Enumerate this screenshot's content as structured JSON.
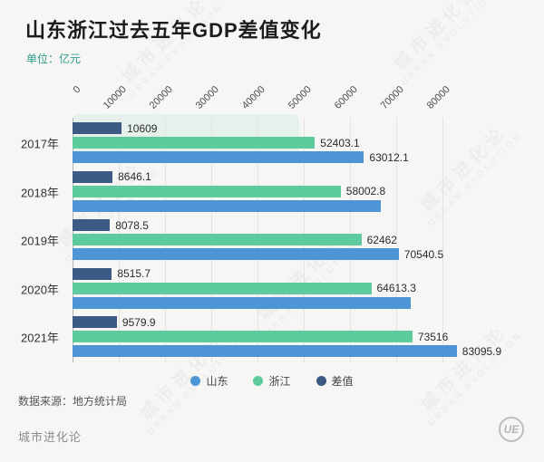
{
  "title": "山东浙江过去五年GDP差值变化",
  "subtitle": "单位：亿元",
  "colors": {
    "shandong": "#4d95d5",
    "zhejiang": "#5ecb9e",
    "diff": "#3d5a85"
  },
  "chart_data": {
    "type": "bar",
    "orientation": "horizontal",
    "unit": "亿元",
    "categories": [
      "2017年",
      "2018年",
      "2019年",
      "2020年",
      "2021年"
    ],
    "series": [
      {
        "name": "山东",
        "color_key": "shandong",
        "values": [
          63012.1,
          66600,
          70540.5,
          73100,
          83095.9
        ],
        "value_labels": [
          "63012.1",
          "",
          "70540.5",
          "",
          "83095.9"
        ]
      },
      {
        "name": "浙江",
        "color_key": "zhejiang",
        "values": [
          52403.1,
          58002.8,
          62462,
          64613.3,
          73516
        ],
        "value_labels": [
          "52403.1",
          "58002.8",
          "62462",
          "64613.3",
          "73516"
        ]
      },
      {
        "name": "差值",
        "color_key": "diff",
        "values": [
          10609,
          8646.1,
          8078.5,
          8515.7,
          9579.9
        ],
        "value_labels": [
          "10609",
          "8646.1",
          "8078.5",
          "8515.7",
          "9579.9"
        ]
      }
    ],
    "display_order": [
      "差值",
      "浙江",
      "山东"
    ],
    "xticks": [
      "0",
      "10000",
      "20000",
      "30000",
      "40000",
      "50000",
      "60000",
      "70000",
      "80000"
    ],
    "xlim": [
      0,
      80000
    ],
    "legend_position": "bottom"
  },
  "legend": {
    "items": [
      {
        "label": "山东",
        "color_key": "shandong"
      },
      {
        "label": "浙江",
        "color_key": "zhejiang"
      },
      {
        "label": "差值",
        "color_key": "diff"
      }
    ]
  },
  "footer": {
    "source": "数据来源：地方统计局",
    "brand": "城市进化论",
    "logo": "UE"
  },
  "watermark": {
    "cn": "城市进化论",
    "en": "URBAN EVOLUTION"
  }
}
